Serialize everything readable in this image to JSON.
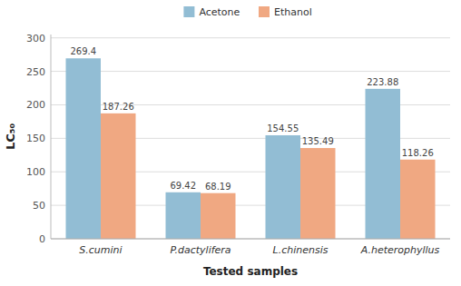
{
  "chart_data": {
    "type": "bar",
    "categories": [
      "S.cumini",
      "P.dactylifera",
      "L.chinensis",
      "A.heterophyllus"
    ],
    "series": [
      {
        "name": "Acetone",
        "color": "#92BDD4",
        "values": [
          269.4,
          69.42,
          154.55,
          223.88
        ]
      },
      {
        "name": "Ethanol",
        "color": "#F0A882",
        "values": [
          187.26,
          68.19,
          135.49,
          118.26
        ]
      }
    ],
    "xlabel": "Tested samples",
    "ylabel": "LC₅₀",
    "ylim": [
      0,
      305
    ],
    "yticks": [
      0,
      50,
      100,
      150,
      200,
      250,
      300
    ],
    "grid": true,
    "legend": "top",
    "data_labels": true
  }
}
